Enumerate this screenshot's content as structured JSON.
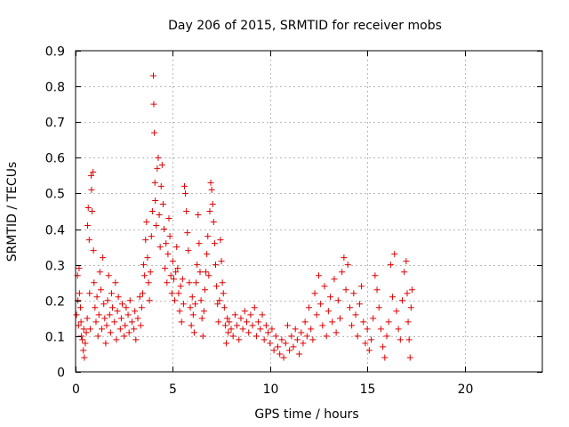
{
  "chart_data": {
    "type": "scatter",
    "title": "Day 206 of 2015, SRMTID for receiver mobs",
    "xlabel": "GPS time / hours",
    "ylabel": "SRMTID / TECUs",
    "xlim": [
      0,
      24
    ],
    "ylim": [
      0,
      0.9
    ],
    "xticks": [
      0,
      5,
      10,
      15,
      20
    ],
    "yticks": [
      0,
      0.1,
      0.2,
      0.3,
      0.4,
      0.5,
      0.6,
      0.7,
      0.8,
      0.9
    ],
    "grid": true,
    "marker": "+",
    "series_color": "#e00000",
    "series": [
      {
        "name": "SRMTID",
        "points": [
          [
            0.05,
            0.16
          ],
          [
            0.1,
            0.27
          ],
          [
            0.12,
            0.2
          ],
          [
            0.15,
            0.13
          ],
          [
            0.18,
            0.29
          ],
          [
            0.2,
            0.22
          ],
          [
            0.25,
            0.18
          ],
          [
            0.28,
            0.14
          ],
          [
            0.3,
            0.1
          ],
          [
            0.35,
            0.09
          ],
          [
            0.4,
            0.06
          ],
          [
            0.42,
            0.12
          ],
          [
            0.45,
            0.04
          ],
          [
            0.5,
            0.08
          ],
          [
            0.55,
            0.11
          ],
          [
            0.6,
            0.15
          ],
          [
            0.62,
            0.41
          ],
          [
            0.65,
            0.46
          ],
          [
            0.7,
            0.37
          ],
          [
            0.72,
            0.22
          ],
          [
            0.75,
            0.12
          ],
          [
            0.8,
            0.55
          ],
          [
            0.82,
            0.51
          ],
          [
            0.85,
            0.45
          ],
          [
            0.9,
            0.56
          ],
          [
            0.92,
            0.34
          ],
          [
            0.95,
            0.25
          ],
          [
            1.0,
            0.18
          ],
          [
            1.05,
            0.14
          ],
          [
            1.1,
            0.21
          ],
          [
            1.15,
            0.1
          ],
          [
            1.2,
            0.16
          ],
          [
            1.25,
            0.28
          ],
          [
            1.3,
            0.23
          ],
          [
            1.35,
            0.12
          ],
          [
            1.4,
            0.32
          ],
          [
            1.45,
            0.19
          ],
          [
            1.5,
            0.15
          ],
          [
            1.55,
            0.08
          ],
          [
            1.6,
            0.13
          ],
          [
            1.65,
            0.2
          ],
          [
            1.7,
            0.27
          ],
          [
            1.75,
            0.16
          ],
          [
            1.8,
            0.11
          ],
          [
            1.85,
            0.22
          ],
          [
            1.9,
            0.18
          ],
          [
            2.0,
            0.14
          ],
          [
            2.05,
            0.25
          ],
          [
            2.1,
            0.09
          ],
          [
            2.15,
            0.17
          ],
          [
            2.2,
            0.21
          ],
          [
            2.3,
            0.12
          ],
          [
            2.35,
            0.15
          ],
          [
            2.4,
            0.19
          ],
          [
            2.5,
            0.1
          ],
          [
            2.55,
            0.13
          ],
          [
            2.6,
            0.18
          ],
          [
            2.7,
            0.16
          ],
          [
            2.75,
            0.11
          ],
          [
            2.8,
            0.2
          ],
          [
            2.9,
            0.14
          ],
          [
            3.0,
            0.12
          ],
          [
            3.05,
            0.17
          ],
          [
            3.1,
            0.09
          ],
          [
            3.2,
            0.15
          ],
          [
            3.3,
            0.21
          ],
          [
            3.35,
            0.13
          ],
          [
            3.4,
            0.18
          ],
          [
            3.45,
            0.22
          ],
          [
            3.5,
            0.3
          ],
          [
            3.55,
            0.27
          ],
          [
            3.6,
            0.37
          ],
          [
            3.65,
            0.42
          ],
          [
            3.7,
            0.32
          ],
          [
            3.75,
            0.25
          ],
          [
            3.8,
            0.2
          ],
          [
            3.85,
            0.28
          ],
          [
            3.9,
            0.38
          ],
          [
            3.95,
            0.45
          ],
          [
            4.0,
            0.83
          ],
          [
            4.02,
            0.75
          ],
          [
            4.05,
            0.67
          ],
          [
            4.08,
            0.53
          ],
          [
            4.1,
            0.48
          ],
          [
            4.15,
            0.41
          ],
          [
            4.2,
            0.57
          ],
          [
            4.25,
            0.6
          ],
          [
            4.3,
            0.44
          ],
          [
            4.35,
            0.35
          ],
          [
            4.4,
            0.52
          ],
          [
            4.45,
            0.58
          ],
          [
            4.5,
            0.47
          ],
          [
            4.55,
            0.4
          ],
          [
            4.6,
            0.29
          ],
          [
            4.65,
            0.36
          ],
          [
            4.7,
            0.25
          ],
          [
            4.75,
            0.33
          ],
          [
            4.8,
            0.43
          ],
          [
            4.85,
            0.38
          ],
          [
            4.9,
            0.27
          ],
          [
            4.95,
            0.22
          ],
          [
            5.0,
            0.31
          ],
          [
            5.05,
            0.26
          ],
          [
            5.1,
            0.2
          ],
          [
            5.15,
            0.28
          ],
          [
            5.2,
            0.35
          ],
          [
            5.25,
            0.29
          ],
          [
            5.3,
            0.22
          ],
          [
            5.35,
            0.17
          ],
          [
            5.4,
            0.24
          ],
          [
            5.45,
            0.14
          ],
          [
            5.5,
            0.26
          ],
          [
            5.55,
            0.19
          ],
          [
            5.6,
            0.52
          ],
          [
            5.65,
            0.5
          ],
          [
            5.7,
            0.45
          ],
          [
            5.75,
            0.39
          ],
          [
            5.8,
            0.34
          ],
          [
            5.85,
            0.25
          ],
          [
            5.9,
            0.18
          ],
          [
            5.95,
            0.13
          ],
          [
            6.0,
            0.21
          ],
          [
            6.05,
            0.16
          ],
          [
            6.1,
            0.11
          ],
          [
            6.15,
            0.19
          ],
          [
            6.2,
            0.25
          ],
          [
            6.25,
            0.3
          ],
          [
            6.3,
            0.44
          ],
          [
            6.35,
            0.36
          ],
          [
            6.4,
            0.28
          ],
          [
            6.45,
            0.2
          ],
          [
            6.5,
            0.15
          ],
          [
            6.55,
            0.1
          ],
          [
            6.6,
            0.17
          ],
          [
            6.65,
            0.23
          ],
          [
            6.7,
            0.28
          ],
          [
            6.75,
            0.33
          ],
          [
            6.8,
            0.38
          ],
          [
            6.85,
            0.27
          ],
          [
            6.9,
            0.45
          ],
          [
            6.95,
            0.53
          ],
          [
            7.0,
            0.51
          ],
          [
            7.05,
            0.47
          ],
          [
            7.1,
            0.42
          ],
          [
            7.15,
            0.36
          ],
          [
            7.2,
            0.3
          ],
          [
            7.25,
            0.24
          ],
          [
            7.3,
            0.19
          ],
          [
            7.35,
            0.14
          ],
          [
            7.4,
            0.2
          ],
          [
            7.45,
            0.37
          ],
          [
            7.5,
            0.31
          ],
          [
            7.55,
            0.25
          ],
          [
            7.6,
            0.22
          ],
          [
            7.65,
            0.18
          ],
          [
            7.7,
            0.13
          ],
          [
            7.75,
            0.08
          ],
          [
            7.8,
            0.15
          ],
          [
            7.85,
            0.11
          ],
          [
            7.9,
            0.14
          ],
          [
            8.0,
            0.12
          ],
          [
            8.1,
            0.1
          ],
          [
            8.2,
            0.16
          ],
          [
            8.3,
            0.13
          ],
          [
            8.4,
            0.09
          ],
          [
            8.5,
            0.15
          ],
          [
            8.6,
            0.12
          ],
          [
            8.7,
            0.17
          ],
          [
            8.8,
            0.14
          ],
          [
            8.9,
            0.11
          ],
          [
            9.0,
            0.16
          ],
          [
            9.1,
            0.13
          ],
          [
            9.2,
            0.18
          ],
          [
            9.3,
            0.1
          ],
          [
            9.4,
            0.14
          ],
          [
            9.5,
            0.12
          ],
          [
            9.6,
            0.16
          ],
          [
            9.7,
            0.09
          ],
          [
            9.8,
            0.13
          ],
          [
            9.9,
            0.11
          ],
          [
            10.0,
            0.08
          ],
          [
            10.1,
            0.12
          ],
          [
            10.2,
            0.06
          ],
          [
            10.3,
            0.1
          ],
          [
            10.4,
            0.07
          ],
          [
            10.5,
            0.05
          ],
          [
            10.6,
            0.09
          ],
          [
            10.7,
            0.04
          ],
          [
            10.8,
            0.08
          ],
          [
            10.9,
            0.13
          ],
          [
            11.0,
            0.06
          ],
          [
            11.1,
            0.1
          ],
          [
            11.2,
            0.07
          ],
          [
            11.3,
            0.12
          ],
          [
            11.4,
            0.09
          ],
          [
            11.5,
            0.05
          ],
          [
            11.6,
            0.11
          ],
          [
            11.7,
            0.08
          ],
          [
            11.8,
            0.14
          ],
          [
            11.9,
            0.1
          ],
          [
            12.0,
            0.18
          ],
          [
            12.1,
            0.12
          ],
          [
            12.2,
            0.09
          ],
          [
            12.3,
            0.22
          ],
          [
            12.4,
            0.16
          ],
          [
            12.5,
            0.27
          ],
          [
            12.6,
            0.19
          ],
          [
            12.7,
            0.13
          ],
          [
            12.8,
            0.24
          ],
          [
            12.9,
            0.1
          ],
          [
            13.0,
            0.17
          ],
          [
            13.1,
            0.21
          ],
          [
            13.2,
            0.14
          ],
          [
            13.3,
            0.26
          ],
          [
            13.4,
            0.11
          ],
          [
            13.5,
            0.2
          ],
          [
            13.6,
            0.15
          ],
          [
            13.7,
            0.28
          ],
          [
            13.8,
            0.32
          ],
          [
            13.9,
            0.23
          ],
          [
            14.0,
            0.3
          ],
          [
            14.1,
            0.18
          ],
          [
            14.2,
            0.13
          ],
          [
            14.3,
            0.22
          ],
          [
            14.4,
            0.16
          ],
          [
            14.5,
            0.1
          ],
          [
            14.6,
            0.19
          ],
          [
            14.7,
            0.24
          ],
          [
            14.8,
            0.14
          ],
          [
            14.9,
            0.08
          ],
          [
            15.0,
            0.12
          ],
          [
            15.1,
            0.06
          ],
          [
            15.2,
            0.09
          ],
          [
            15.3,
            0.15
          ],
          [
            15.4,
            0.27
          ],
          [
            15.5,
            0.23
          ],
          [
            15.6,
            0.18
          ],
          [
            15.7,
            0.12
          ],
          [
            15.8,
            0.07
          ],
          [
            15.9,
            0.04
          ],
          [
            16.0,
            0.1
          ],
          [
            16.1,
            0.14
          ],
          [
            16.2,
            0.3
          ],
          [
            16.3,
            0.21
          ],
          [
            16.4,
            0.33
          ],
          [
            16.5,
            0.17
          ],
          [
            16.6,
            0.12
          ],
          [
            16.7,
            0.09
          ],
          [
            16.8,
            0.2
          ],
          [
            16.9,
            0.28
          ],
          [
            17.0,
            0.31
          ],
          [
            17.05,
            0.22
          ],
          [
            17.1,
            0.14
          ],
          [
            17.15,
            0.09
          ],
          [
            17.2,
            0.04
          ],
          [
            17.25,
            0.18
          ],
          [
            17.3,
            0.23
          ]
        ]
      }
    ]
  }
}
